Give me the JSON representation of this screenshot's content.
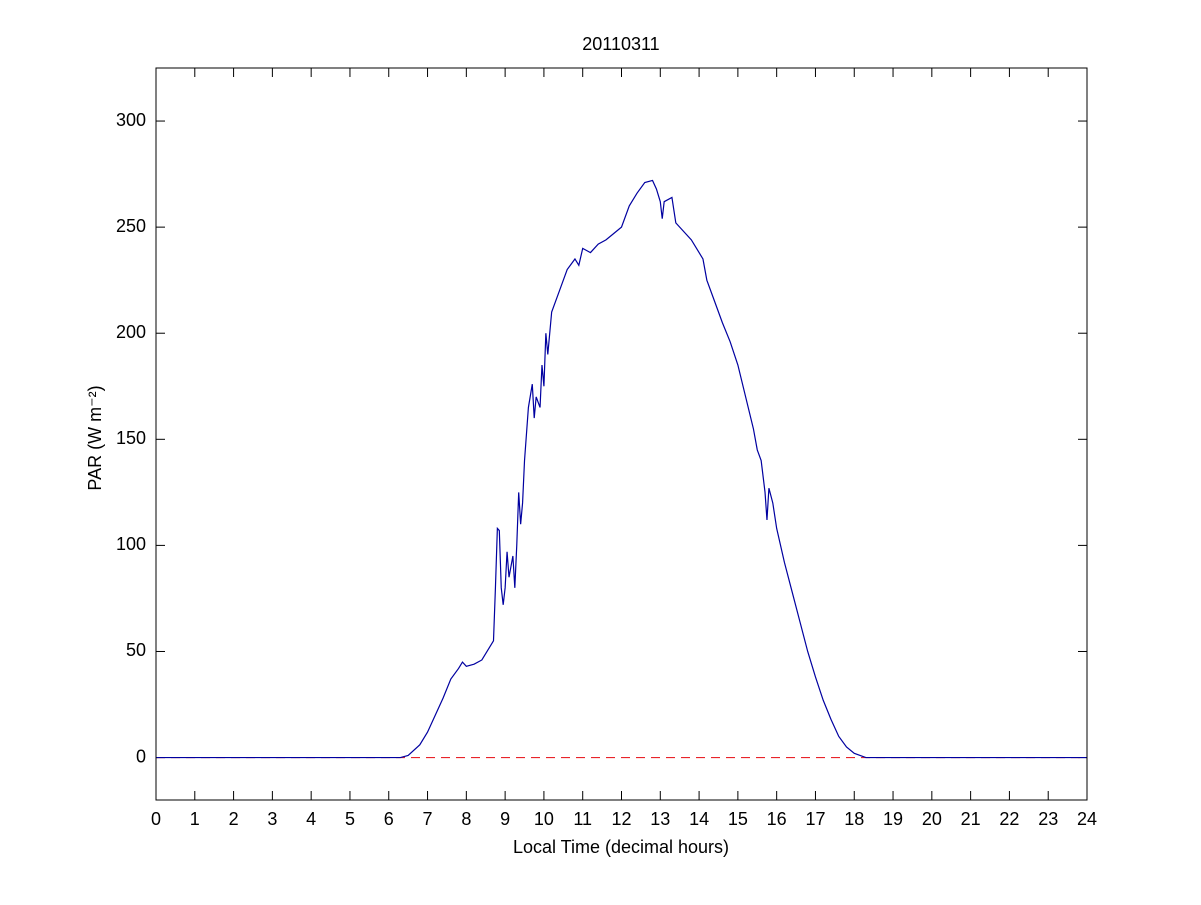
{
  "chart_data": {
    "type": "line",
    "title": "20110311",
    "xlabel": "Local Time (decimal hours)",
    "ylabel": "PAR (W m⁻²)",
    "xlim": [
      0,
      24
    ],
    "ylim": [
      -20,
      325
    ],
    "xticks": [
      0,
      1,
      2,
      3,
      4,
      5,
      6,
      7,
      8,
      9,
      10,
      11,
      12,
      13,
      14,
      15,
      16,
      17,
      18,
      19,
      20,
      21,
      22,
      23,
      24
    ],
    "yticks": [
      0,
      50,
      100,
      150,
      200,
      250,
      300
    ],
    "grid": false,
    "reference_line": {
      "y": 0,
      "color": "#e8242b",
      "dashed": true
    },
    "series": [
      {
        "color": "#0000a0",
        "x": [
          0,
          6.3,
          6.5,
          6.8,
          7,
          7.2,
          7.4,
          7.6,
          7.8,
          7.9,
          8,
          8.2,
          8.4,
          8.6,
          8.7,
          8.75,
          8.8,
          8.85,
          8.9,
          8.95,
          9,
          9.05,
          9.1,
          9.2,
          9.25,
          9.3,
          9.35,
          9.4,
          9.45,
          9.5,
          9.6,
          9.7,
          9.75,
          9.8,
          9.9,
          9.95,
          10,
          10.05,
          10.1,
          10.2,
          10.4,
          10.6,
          10.8,
          10.9,
          11,
          11.2,
          11.4,
          11.6,
          11.8,
          12,
          12.2,
          12.4,
          12.6,
          12.8,
          12.9,
          13,
          13.05,
          13.1,
          13.3,
          13.4,
          13.6,
          13.8,
          14,
          14.1,
          14.2,
          14.4,
          14.6,
          14.8,
          15,
          15.2,
          15.4,
          15.5,
          15.6,
          15.7,
          15.75,
          15.8,
          15.9,
          16,
          16.2,
          16.4,
          16.6,
          16.8,
          17,
          17.2,
          17.4,
          17.6,
          17.8,
          18,
          18.3,
          24
        ],
        "values": [
          0,
          0,
          1,
          6,
          12,
          20,
          28,
          37,
          42,
          45,
          43,
          44,
          46,
          52,
          55,
          80,
          108,
          107,
          80,
          72,
          80,
          97,
          85,
          95,
          80,
          100,
          125,
          110,
          120,
          140,
          165,
          176,
          160,
          170,
          165,
          185,
          175,
          200,
          190,
          210,
          220,
          230,
          235,
          232,
          240,
          238,
          242,
          244,
          247,
          250,
          260,
          266,
          271,
          272,
          268,
          262,
          254,
          262,
          264,
          252,
          248,
          244,
          238,
          235,
          225,
          215,
          205,
          196,
          185,
          170,
          155,
          145,
          140,
          125,
          112,
          127,
          120,
          108,
          92,
          78,
          64,
          50,
          38,
          27,
          18,
          10,
          5,
          2,
          0,
          0
        ]
      }
    ]
  }
}
